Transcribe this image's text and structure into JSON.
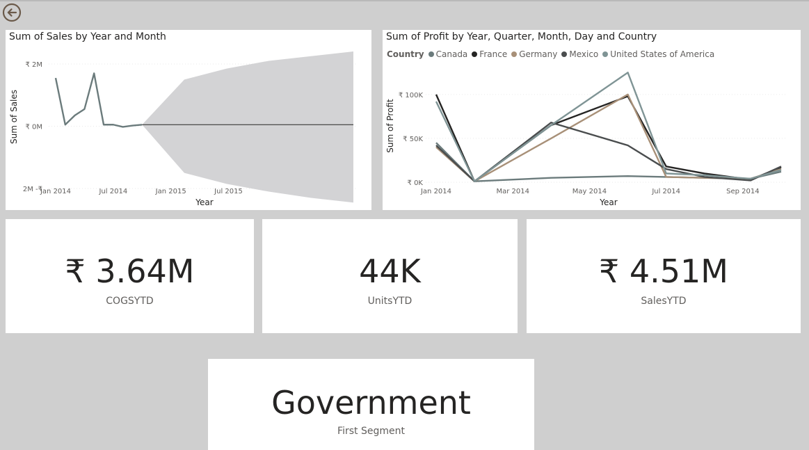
{
  "back_button": {
    "icon": "arrow-left-circle-icon",
    "color": "#6b5a4a"
  },
  "sales_chart": {
    "title": "Sum of Sales by Year and Month",
    "chart_data": {
      "type": "line",
      "title": "Sum of Sales by Year and Month",
      "xlabel": "Year",
      "ylabel": "Sum of Sales",
      "x_ticks": [
        "Jan 2014",
        "Jul 2014",
        "Jan 2015",
        "Jul 2015"
      ],
      "y_ticks": [
        "₹ 2M",
        "₹ 0M",
        "2M -₹"
      ],
      "ylim": [
        -2.2,
        2.2
      ],
      "series": [
        {
          "values": [
            1.55,
            0.05,
            0.35,
            0.55,
            1.7,
            0.05,
            0.05,
            -0.02,
            0.02,
            0.05
          ]
        }
      ],
      "forecast": {
        "line_value": 0.05,
        "upper": [
          0.05,
          1.5,
          1.85,
          2.1,
          2.25,
          2.4
        ],
        "lower": [
          0.05,
          -1.5,
          -1.85,
          -2.1,
          -2.3,
          -2.45
        ]
      },
      "grid": true,
      "line_color": "#6b7b7c",
      "band_color": "#d3d3d5"
    }
  },
  "profit_chart": {
    "title": "Sum of Profit by Year, Quarter, Month, Day and Country",
    "legend_title": "Country",
    "chart_data": {
      "type": "line",
      "title": "Sum of Profit by Year, Quarter, Month, Day and Country",
      "xlabel": "Year",
      "ylabel": "Sum of Profit",
      "x_ticks": [
        "Jan 2014",
        "Mar 2014",
        "May 2014",
        "Jul 2014",
        "Sep 2014"
      ],
      "y_ticks": [
        "₹ 100K",
        "₹ 50K",
        "₹ 0K"
      ],
      "ylim": [
        0,
        130
      ],
      "legend_position": "top-left",
      "series": [
        {
          "name": "Canada",
          "color": "#6b7b7c",
          "values": [
            45,
            1,
            5,
            7,
            6,
            5,
            4,
            12
          ]
        },
        {
          "name": "France",
          "color": "#252423",
          "values": [
            100,
            1,
            65,
            98,
            18,
            10,
            3,
            17
          ]
        },
        {
          "name": "Germany",
          "color": "#a89078",
          "values": [
            40,
            1,
            50,
            100,
            6,
            5,
            4,
            15
          ]
        },
        {
          "name": "Mexico",
          "color": "#4a4d4e",
          "values": [
            42,
            1,
            68,
            42,
            15,
            6,
            2,
            18
          ]
        },
        {
          "name": "United States of America",
          "color": "#7f9495",
          "values": [
            92,
            1,
            65,
            125,
            10,
            8,
            4,
            14
          ]
        }
      ],
      "grid": true
    }
  },
  "kpis": [
    {
      "value": "₹ 3.64M",
      "label": "COGSYTD"
    },
    {
      "value": "44K",
      "label": "UnitsYTD"
    },
    {
      "value": "₹ 4.51M",
      "label": "SalesYTD"
    }
  ],
  "segment_card": {
    "value": "Government",
    "label": "First Segment"
  }
}
